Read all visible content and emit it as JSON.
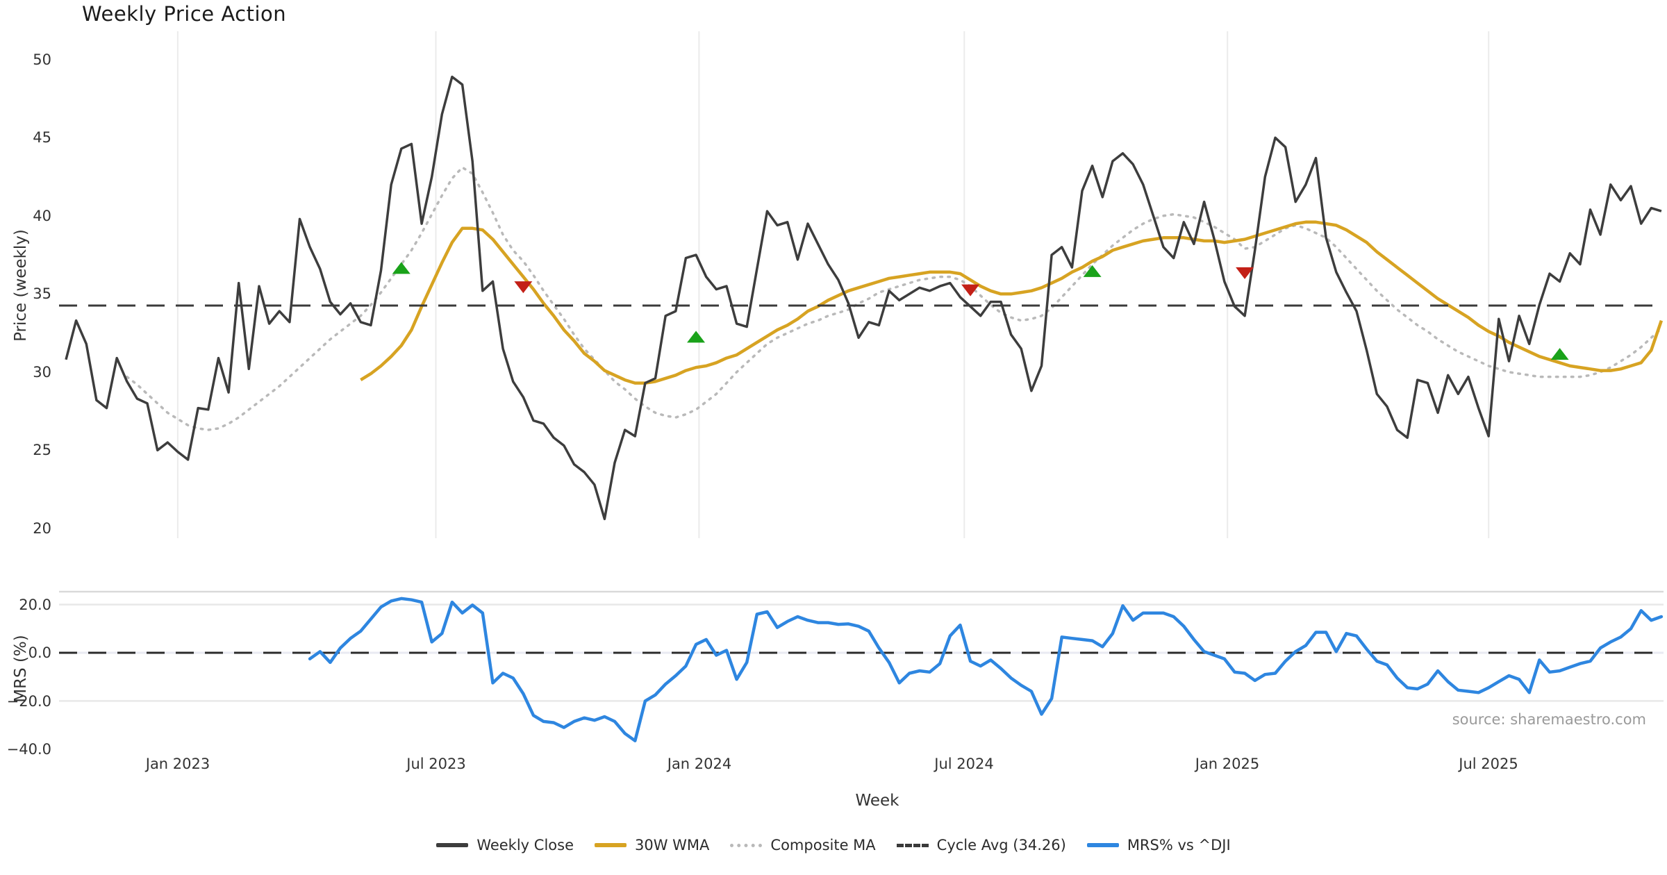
{
  "title": "Weekly Price Action",
  "source_note": "source: sharemaestro.com",
  "chart_data": {
    "type": "line",
    "title": "Weekly Price Action",
    "xlabel": "Week",
    "x_unit": "week_index",
    "n_weeks": 158,
    "grid": "vertical-top-panel, horizontal-bottom-panel",
    "legend_position": "bottom-center",
    "xticks": {
      "weeks": [
        11.0,
        36.4,
        62.3,
        88.4,
        114.3,
        140.0
      ],
      "labels": [
        "Jan 2023",
        "Jul 2023",
        "Jan 2024",
        "Jul 2024",
        "Jan 2025",
        "Jul 2025"
      ]
    },
    "price_panel": {
      "ylabel": "Price (weekly)",
      "yticks": [
        50,
        45,
        40,
        35,
        30,
        25,
        20
      ],
      "ylim": [
        19.4,
        51.8
      ],
      "cycle_avg": 34.26,
      "cycle_avg_color": "#3a3a3a",
      "series": [
        {
          "name": "Weekly Close",
          "color": "#3d3d3d",
          "style": "solid",
          "width": 3.5,
          "start_week": 0,
          "values": [
            30.8,
            33.3,
            31.8,
            28.2,
            27.7,
            30.9,
            29.4,
            28.3,
            28.0,
            25.0,
            25.5,
            24.9,
            24.4,
            27.7,
            27.6,
            30.9,
            28.7,
            35.7,
            30.2,
            35.5,
            33.1,
            33.9,
            33.2,
            39.8,
            38.0,
            36.6,
            34.5,
            33.7,
            34.4,
            33.2,
            33.0,
            36.5,
            42.0,
            44.3,
            44.6,
            39.5,
            42.5,
            46.5,
            48.9,
            48.4,
            43.5,
            35.2,
            35.8,
            31.5,
            29.4,
            28.4,
            26.9,
            26.7,
            25.8,
            25.3,
            24.1,
            23.6,
            22.8,
            20.6,
            24.2,
            26.3,
            25.9,
            29.3,
            29.6,
            33.6,
            33.9,
            37.3,
            37.5,
            36.1,
            35.3,
            35.5,
            33.1,
            32.9,
            36.6,
            40.3,
            39.4,
            39.6,
            37.2,
            39.5,
            38.2,
            36.9,
            35.9,
            34.4,
            32.2,
            33.2,
            33.0,
            35.2,
            34.6,
            35.0,
            35.4,
            35.2,
            35.5,
            35.7,
            34.8,
            34.2,
            33.6,
            34.5,
            34.5,
            32.4,
            31.5,
            28.8,
            30.4,
            37.5,
            38.0,
            36.7,
            41.6,
            43.2,
            41.2,
            43.5,
            44.0,
            43.3,
            42.0,
            40.0,
            38.0,
            37.3,
            39.6,
            38.2,
            40.9,
            38.5,
            35.8,
            34.2,
            33.6,
            37.8,
            42.5,
            45.0,
            44.4,
            40.9,
            42.0,
            43.7,
            38.6,
            36.4,
            35.1,
            33.9,
            31.4,
            28.6,
            27.8,
            26.3,
            25.8,
            29.5,
            29.3,
            27.4,
            29.8,
            28.6,
            29.7,
            27.7,
            25.9,
            33.4,
            30.7,
            33.6,
            31.8,
            34.3,
            36.3,
            35.8,
            37.6,
            36.9,
            40.4,
            38.8,
            42.0,
            41.0,
            41.9,
            39.5,
            40.5,
            40.3
          ]
        },
        {
          "name": "30W WMA",
          "color": "#d7a322",
          "style": "solid",
          "width": 4.5,
          "start_week": 29,
          "values": [
            29.5,
            29.9,
            30.4,
            31.0,
            31.7,
            32.7,
            34.2,
            35.6,
            37.0,
            38.3,
            39.2,
            39.2,
            39.1,
            38.5,
            37.7,
            36.9,
            36.1,
            35.3,
            34.4,
            33.6,
            32.7,
            32.0,
            31.2,
            30.7,
            30.1,
            29.8,
            29.5,
            29.3,
            29.3,
            29.4,
            29.6,
            29.8,
            30.1,
            30.3,
            30.4,
            30.6,
            30.9,
            31.1,
            31.5,
            31.9,
            32.3,
            32.7,
            33.0,
            33.4,
            33.9,
            34.2,
            34.6,
            34.9,
            35.2,
            35.4,
            35.6,
            35.8,
            36.0,
            36.1,
            36.2,
            36.3,
            36.4,
            36.4,
            36.4,
            36.3,
            35.9,
            35.5,
            35.2,
            35.0,
            35.0,
            35.1,
            35.2,
            35.4,
            35.7,
            36.0,
            36.4,
            36.7,
            37.1,
            37.4,
            37.8,
            38.0,
            38.2,
            38.4,
            38.5,
            38.6,
            38.6,
            38.6,
            38.5,
            38.4,
            38.4,
            38.3,
            38.4,
            38.5,
            38.7,
            38.9,
            39.1,
            39.3,
            39.5,
            39.6,
            39.6,
            39.5,
            39.4,
            39.1,
            38.7,
            38.3,
            37.7,
            37.2,
            36.7,
            36.2,
            35.7,
            35.2,
            34.7,
            34.3,
            33.9,
            33.5,
            33.0,
            32.6,
            32.3,
            31.9,
            31.6,
            31.3,
            31.0,
            30.8,
            30.6,
            30.4,
            30.3,
            30.2,
            30.1,
            30.1,
            30.2,
            30.4,
            30.6,
            31.4,
            33.3
          ]
        },
        {
          "name": "Composite MA",
          "color": "#b9b9b9",
          "style": "dotted",
          "width": 3.5,
          "start_week": 6,
          "values": [
            29.7,
            29.2,
            28.6,
            28.0,
            27.4,
            27.0,
            26.6,
            26.4,
            26.3,
            26.4,
            26.7,
            27.1,
            27.6,
            28.1,
            28.6,
            29.1,
            29.7,
            30.3,
            30.9,
            31.5,
            32.1,
            32.6,
            33.1,
            33.6,
            34.3,
            35.1,
            36.0,
            36.9,
            37.8,
            38.9,
            40.1,
            41.3,
            42.4,
            43.1,
            42.7,
            41.5,
            40.2,
            38.8,
            37.8,
            37.1,
            36.2,
            35.2,
            34.3,
            33.4,
            32.4,
            31.5,
            30.8,
            30.1,
            29.4,
            28.9,
            28.3,
            27.8,
            27.4,
            27.2,
            27.1,
            27.3,
            27.6,
            28.1,
            28.6,
            29.3,
            30.0,
            30.6,
            31.2,
            31.8,
            32.2,
            32.5,
            32.8,
            33.1,
            33.3,
            33.6,
            33.8,
            34.0,
            34.4,
            34.7,
            35.1,
            35.3,
            35.5,
            35.7,
            35.9,
            36.0,
            36.1,
            36.1,
            35.9,
            35.5,
            34.9,
            34.3,
            33.8,
            33.5,
            33.3,
            33.4,
            33.6,
            34.1,
            34.8,
            35.5,
            36.2,
            36.9,
            37.5,
            38.1,
            38.6,
            39.1,
            39.5,
            39.8,
            40.0,
            40.1,
            40.0,
            39.9,
            39.6,
            39.3,
            38.9,
            38.5,
            37.9,
            38.0,
            38.4,
            38.8,
            39.2,
            39.4,
            39.2,
            38.9,
            38.6,
            38.0,
            37.3,
            36.6,
            35.9,
            35.2,
            34.6,
            34.0,
            33.5,
            33.0,
            32.6,
            32.1,
            31.7,
            31.3,
            31.0,
            30.7,
            30.4,
            30.2,
            30.0,
            29.9,
            29.8,
            29.7,
            29.7,
            29.7,
            29.7,
            29.7,
            29.8,
            30.0,
            30.3,
            30.7,
            31.1,
            31.6,
            32.2,
            32.8
          ]
        }
      ],
      "markers": {
        "buy": {
          "shape": "triangle-up",
          "color": "#1aa21a",
          "points": [
            {
              "week": 33,
              "value": 36.6
            },
            {
              "week": 62,
              "value": 32.2
            },
            {
              "week": 101,
              "value": 36.4
            },
            {
              "week": 147,
              "value": 31.1
            }
          ]
        },
        "sell": {
          "shape": "triangle-down",
          "color": "#c32017",
          "points": [
            {
              "week": 45,
              "value": 35.5
            },
            {
              "week": 89,
              "value": 35.3
            },
            {
              "week": 116,
              "value": 36.4
            }
          ]
        }
      }
    },
    "mrs_panel": {
      "ylabel": "MRS (%)",
      "yticks": [
        "20.0",
        "0.0",
        "−20.0",
        "−40.0"
      ],
      "ytick_values": [
        20,
        0,
        -20,
        -40
      ],
      "ylim": [
        -41.8,
        25.4
      ],
      "zero_line": 0,
      "series": {
        "name": "MRS% vs ^DJI",
        "color": "#2e86e0",
        "style": "solid",
        "width": 4.5,
        "start_week": 24,
        "values": [
          -2.5,
          0.5,
          -4.0,
          2.0,
          6.0,
          9.0,
          14.0,
          19.0,
          21.5,
          22.5,
          22.0,
          21.0,
          4.5,
          8.0,
          21.0,
          16.5,
          19.8,
          16.5,
          -12.5,
          -8.5,
          -10.5,
          -17.0,
          -26.0,
          -28.5,
          -29.0,
          -31.0,
          -28.5,
          -27.0,
          -28.0,
          -26.5,
          -28.5,
          -33.5,
          -36.5,
          -20.0,
          -17.5,
          -13.0,
          -9.5,
          -5.5,
          3.5,
          5.5,
          -1.0,
          1.0,
          -11.0,
          -4.0,
          16.0,
          17.0,
          10.5,
          13.0,
          15.0,
          13.5,
          12.5,
          12.5,
          11.8,
          12.0,
          11.0,
          9.0,
          2.0,
          -4.0,
          -12.5,
          -8.5,
          -7.5,
          -8.0,
          -4.5,
          7.0,
          11.5,
          -3.5,
          -5.5,
          -3.0,
          -6.5,
          -10.5,
          -13.5,
          -16.0,
          -25.5,
          -19.0,
          6.5,
          6.0,
          5.5,
          5.0,
          2.5,
          8.0,
          19.5,
          13.5,
          16.5,
          16.5,
          16.5,
          15.0,
          11.0,
          5.5,
          0.5,
          -1.0,
          -2.5,
          -8.0,
          -8.5,
          -11.5,
          -9.0,
          -8.5,
          -3.5,
          0.5,
          3.0,
          8.5,
          8.5,
          0.5,
          8.0,
          7.0,
          1.5,
          -3.5,
          -5.0,
          -10.5,
          -14.5,
          -15.0,
          -13.0,
          -7.5,
          -12.0,
          -15.5,
          -16.0,
          -16.5,
          -14.5,
          -12.0,
          -9.5,
          -11.0,
          -16.5,
          -3.0,
          -8.0,
          -7.5,
          -6.0,
          -4.5,
          -3.5,
          2.0,
          4.5,
          6.5,
          10.0,
          17.5,
          13.5,
          15.0
        ]
      }
    },
    "legend": [
      {
        "label": "Weekly Close",
        "color": "#3d3d3d",
        "style": "solid"
      },
      {
        "label": "30W WMA",
        "color": "#d7a322",
        "style": "solid"
      },
      {
        "label": "Composite MA",
        "color": "#b9b9b9",
        "style": "dotted"
      },
      {
        "label": "Cycle Avg (34.26)",
        "color": "#3a3a3a",
        "style": "dashed"
      },
      {
        "label": "MRS% vs ^DJI",
        "color": "#2e86e0",
        "style": "solid"
      }
    ]
  }
}
